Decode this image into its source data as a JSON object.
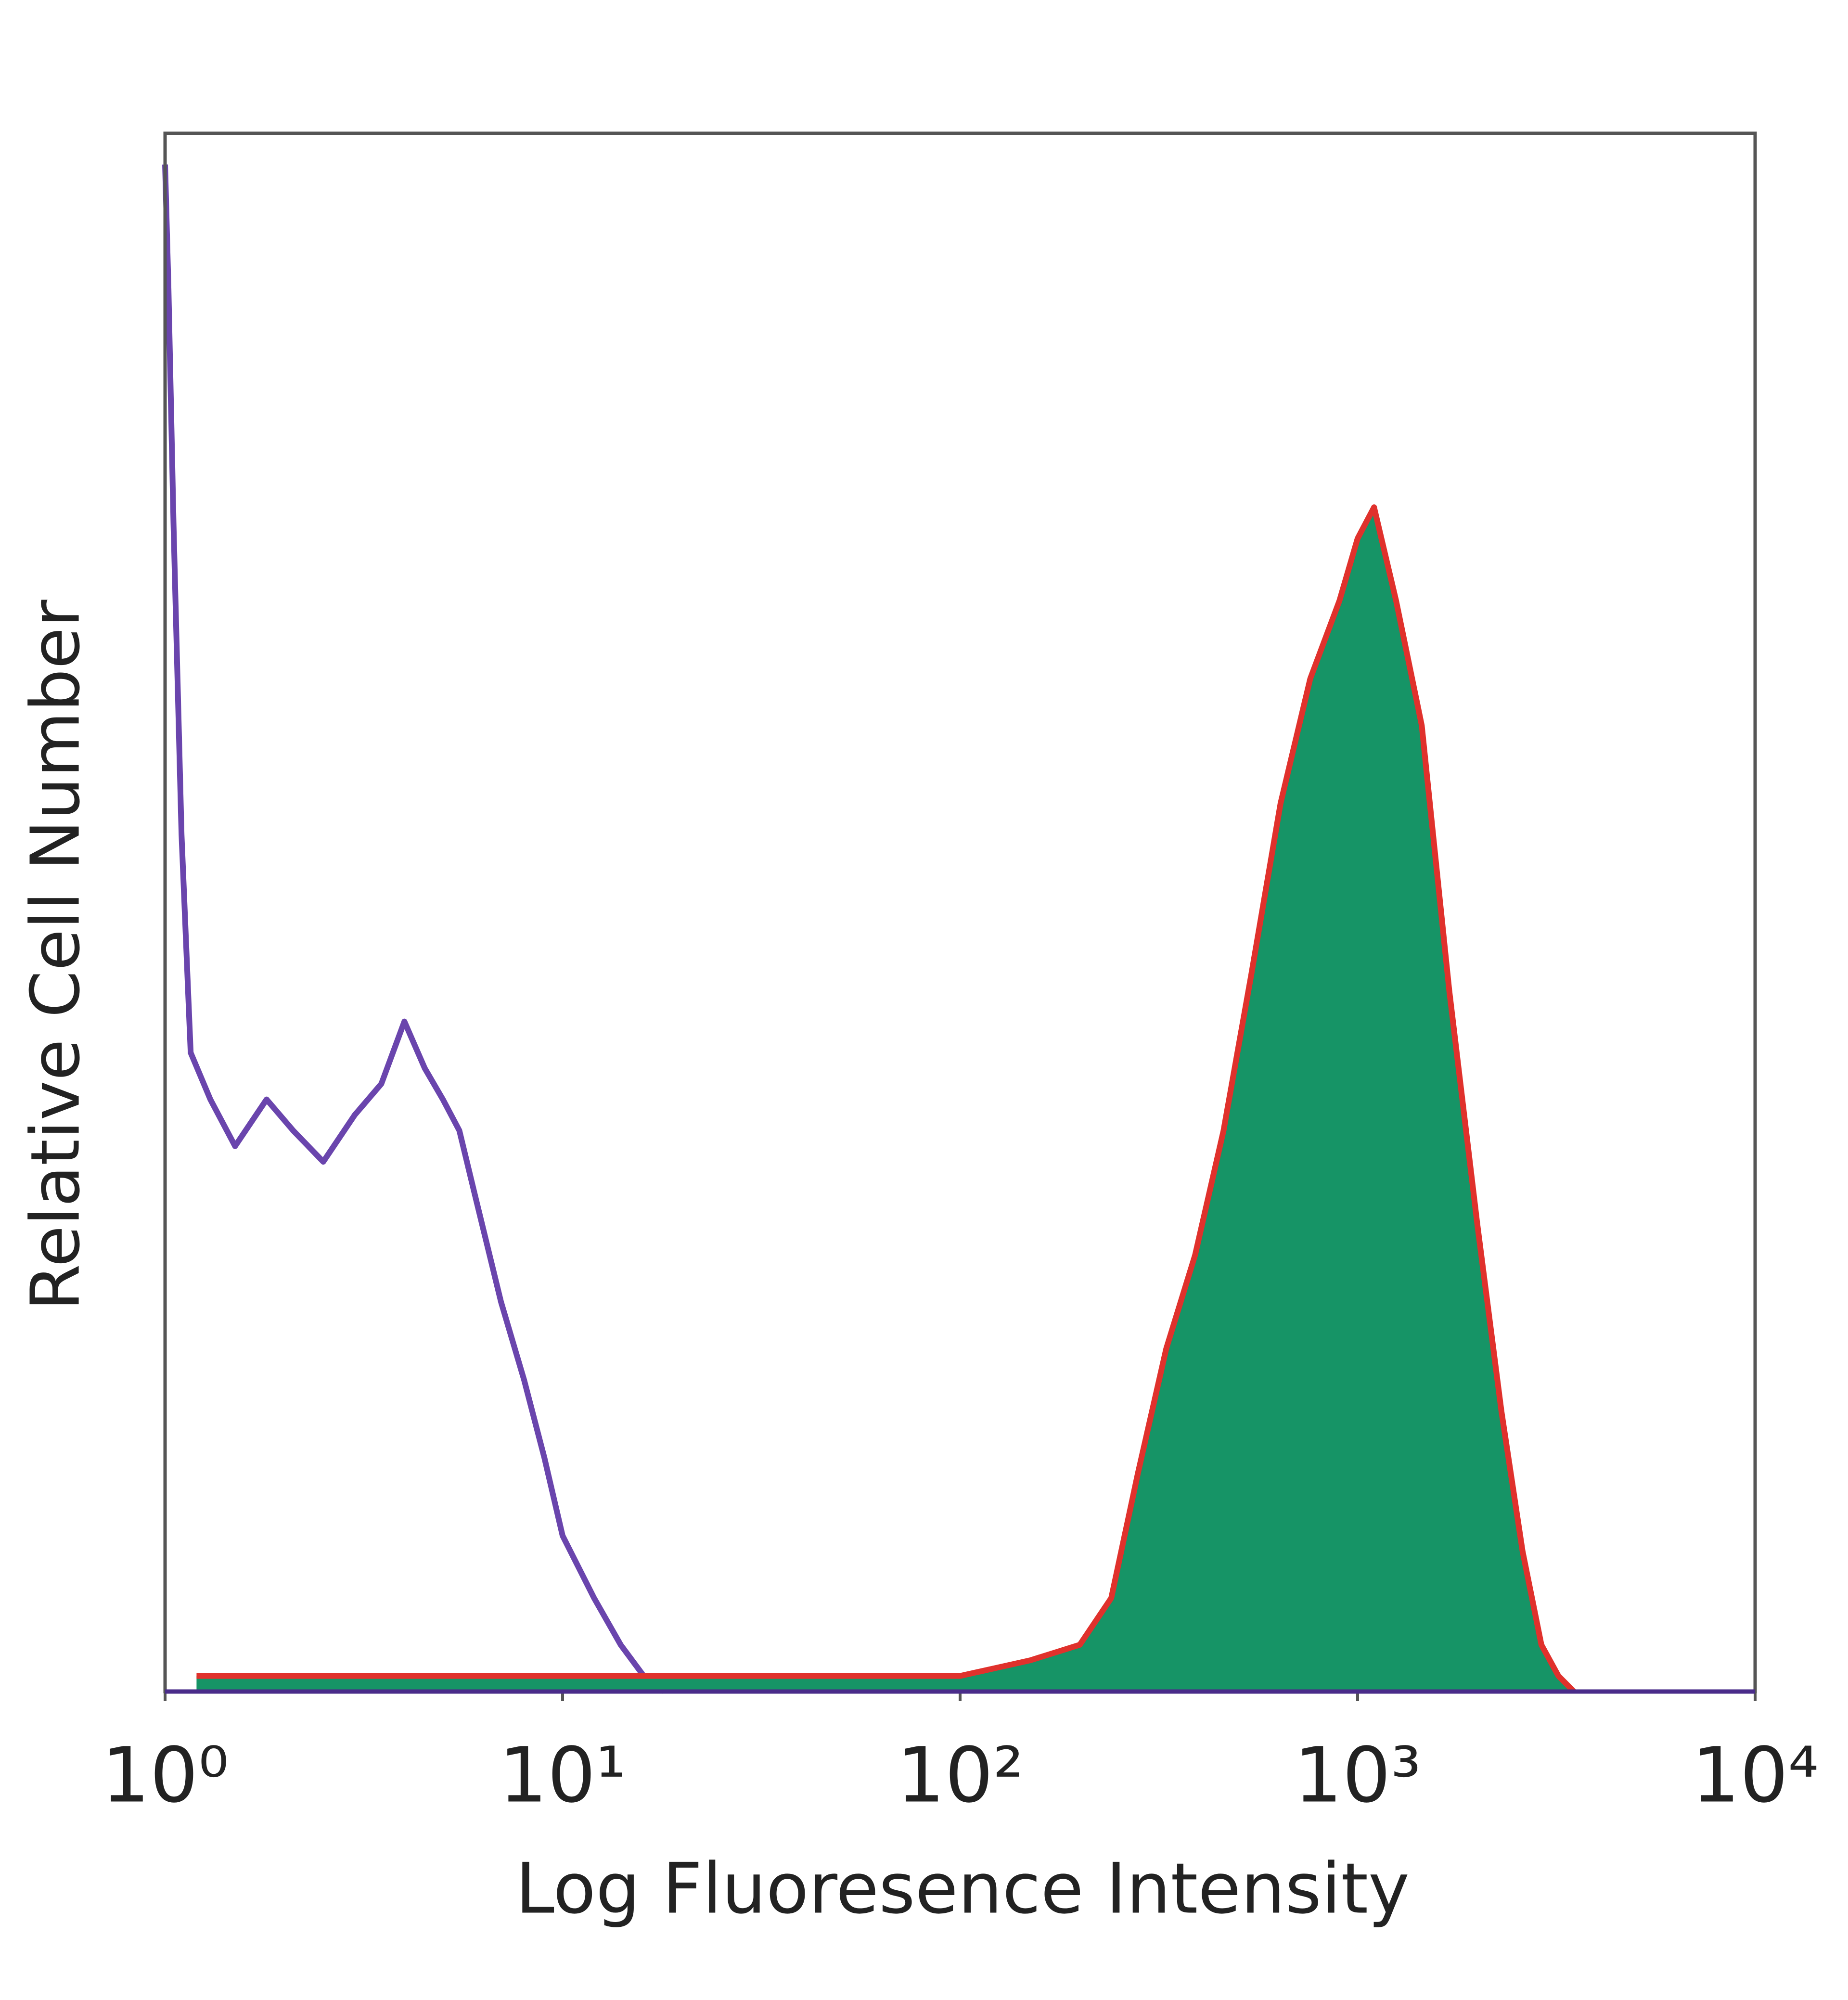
{
  "chart_data": {
    "type": "histogram-overlay",
    "x_label": "Log Fluoresence Intensity",
    "y_label": "Relative Cell Number",
    "x_scale": "log",
    "xlim": [
      1,
      10000
    ],
    "ylim": [
      0,
      100
    ],
    "xticks": [
      {
        "value": 1,
        "label": "10⁰"
      },
      {
        "value": 10,
        "label": "10¹"
      },
      {
        "value": 100,
        "label": "10²"
      },
      {
        "value": 1000,
        "label": "10³"
      },
      {
        "value": 10000,
        "label": "10⁴"
      }
    ],
    "series": [
      {
        "color": "#6a45ad",
        "fill": null,
        "x": [
          1,
          1.02,
          1.05,
          1.1,
          1.16,
          1.3,
          1.5,
          1.8,
          2.1,
          2.5,
          3,
          3.5,
          4,
          4.5,
          5,
          5.5,
          6,
          7,
          8,
          9,
          10,
          12,
          14,
          16,
          18
        ],
        "values": [
          98,
          90,
          75,
          55,
          41,
          38,
          35,
          38,
          36,
          34,
          37,
          39,
          43,
          40,
          38,
          36,
          32,
          25,
          20,
          15,
          10,
          6,
          3,
          1,
          0
        ]
      },
      {
        "color": "#e0312c",
        "fill": "#169466",
        "x": [
          1.2,
          5,
          20,
          50,
          100,
          150,
          200,
          240,
          280,
          330,
          390,
          460,
          540,
          640,
          760,
          900,
          1000,
          1100,
          1250,
          1450,
          1700,
          2000,
          2300,
          2600,
          2900,
          3200,
          3500
        ],
        "values": [
          1,
          1,
          1,
          1,
          1,
          2,
          3,
          6,
          14,
          22,
          28,
          36,
          46,
          57,
          65,
          70,
          74,
          76,
          70,
          62,
          45,
          30,
          18,
          9,
          3,
          1,
          0
        ]
      }
    ]
  }
}
